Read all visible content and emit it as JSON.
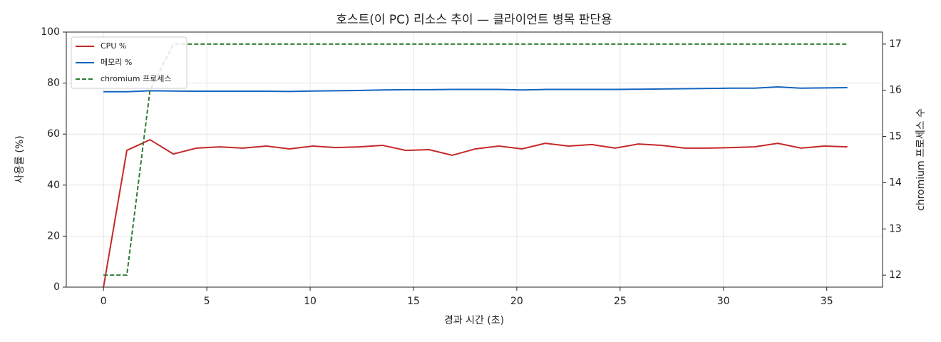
{
  "chart_data": {
    "type": "line",
    "title": "호스트(이 PC) 리소스 추이 — 클라이언트 병목 판단용",
    "xlabel": "경과 시간 (초)",
    "ylabel": "사용률 (%)",
    "y2label": "chromium 프로세스 수",
    "x": [
      0,
      1.13,
      2.25,
      3.38,
      4.5,
      5.63,
      6.75,
      7.88,
      9,
      10.13,
      11.25,
      12.38,
      13.5,
      14.63,
      15.75,
      16.88,
      18,
      19.13,
      20.25,
      21.38,
      22.5,
      23.63,
      24.75,
      25.88,
      27,
      28.13,
      29.25,
      30.38,
      31.5,
      32.63,
      33.75,
      34.88,
      36
    ],
    "series": [
      {
        "name": "CPU %",
        "color": "#c62828",
        "linestyle": "solid",
        "values": [
          0,
          53.6,
          57.8,
          52.2,
          54.5,
          55.0,
          54.5,
          55.3,
          54.2,
          55.3,
          54.7,
          55.0,
          55.6,
          53.6,
          53.9,
          51.7,
          54.2,
          55.3,
          54.2,
          56.4,
          55.3,
          55.9,
          54.5,
          56.1,
          55.6,
          54.5,
          54.5,
          54.7,
          55.0,
          56.4,
          54.5,
          55.3,
          55.0
        ]
      },
      {
        "name": "메모리 %",
        "color": "#1565c0",
        "linestyle": "solid",
        "values": [
          76.6,
          76.6,
          77.0,
          76.9,
          76.8,
          76.8,
          76.8,
          76.8,
          76.7,
          76.9,
          77.0,
          77.1,
          77.3,
          77.4,
          77.4,
          77.5,
          77.5,
          77.5,
          77.3,
          77.5,
          77.5,
          77.5,
          77.5,
          77.6,
          77.7,
          77.8,
          77.9,
          78.0,
          78.0,
          78.5,
          78.0,
          78.1,
          78.2
        ]
      },
      {
        "name": "chromium 프로세스",
        "color": "#2e7d32",
        "linestyle": "dashed",
        "axis": "y2",
        "values": [
          12,
          12,
          16,
          17,
          17,
          17,
          17,
          17,
          17,
          17,
          17,
          17,
          17,
          17,
          17,
          17,
          17,
          17,
          17,
          17,
          17,
          17,
          17,
          17,
          17,
          17,
          17,
          17,
          17,
          17,
          17,
          17,
          17
        ]
      }
    ],
    "xlim": [
      -1.8,
      37.7
    ],
    "xticks": [
      0,
      5,
      10,
      15,
      20,
      25,
      30,
      35
    ],
    "ylim": [
      0,
      100
    ],
    "yticks": [
      0,
      20,
      40,
      60,
      80,
      100
    ],
    "y2lim": [
      11.74,
      17.26
    ],
    "y2ticks": [
      12,
      13,
      14,
      15,
      16,
      17
    ],
    "grid": true,
    "legend": "upper left"
  }
}
